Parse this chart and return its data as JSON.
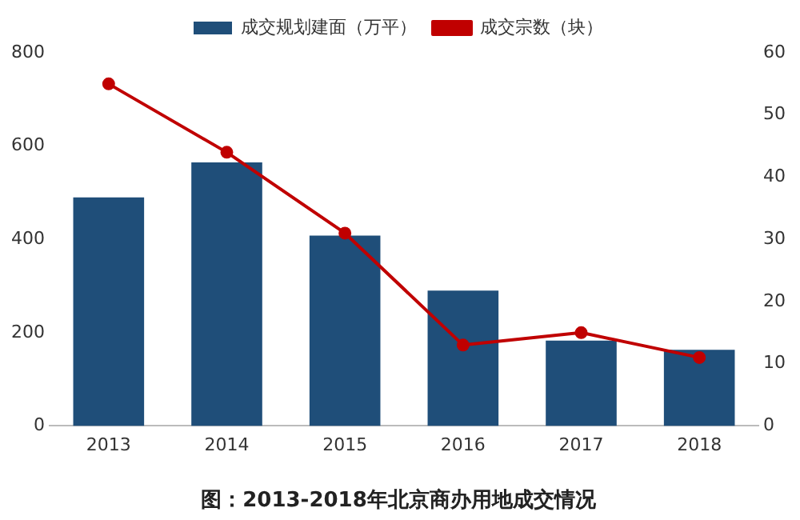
{
  "chart_data": {
    "type": "bar",
    "title": "图：2013-2018年北京商办用地成交情况",
    "categories": [
      "2013",
      "2014",
      "2015",
      "2016",
      "2017",
      "2018"
    ],
    "series": [
      {
        "name": "成交规划建面（万平）",
        "color": "#1f4e79",
        "values": [
          490,
          565,
          408,
          290,
          183,
          163
        ]
      },
      {
        "name": "成交宗数（块）",
        "type": "line",
        "axis": "y2",
        "color": "#c00000",
        "values": [
          55,
          44,
          31,
          13,
          15,
          11
        ]
      }
    ],
    "ylim": [
      0,
      800
    ],
    "yticks": [
      0,
      200,
      400,
      600,
      800
    ],
    "y2lim": [
      0,
      60
    ],
    "y2ticks": [
      0,
      10,
      20,
      30,
      40,
      50,
      60
    ],
    "grid": false,
    "legend": "top",
    "marker": "circle",
    "line_style": "solid"
  }
}
